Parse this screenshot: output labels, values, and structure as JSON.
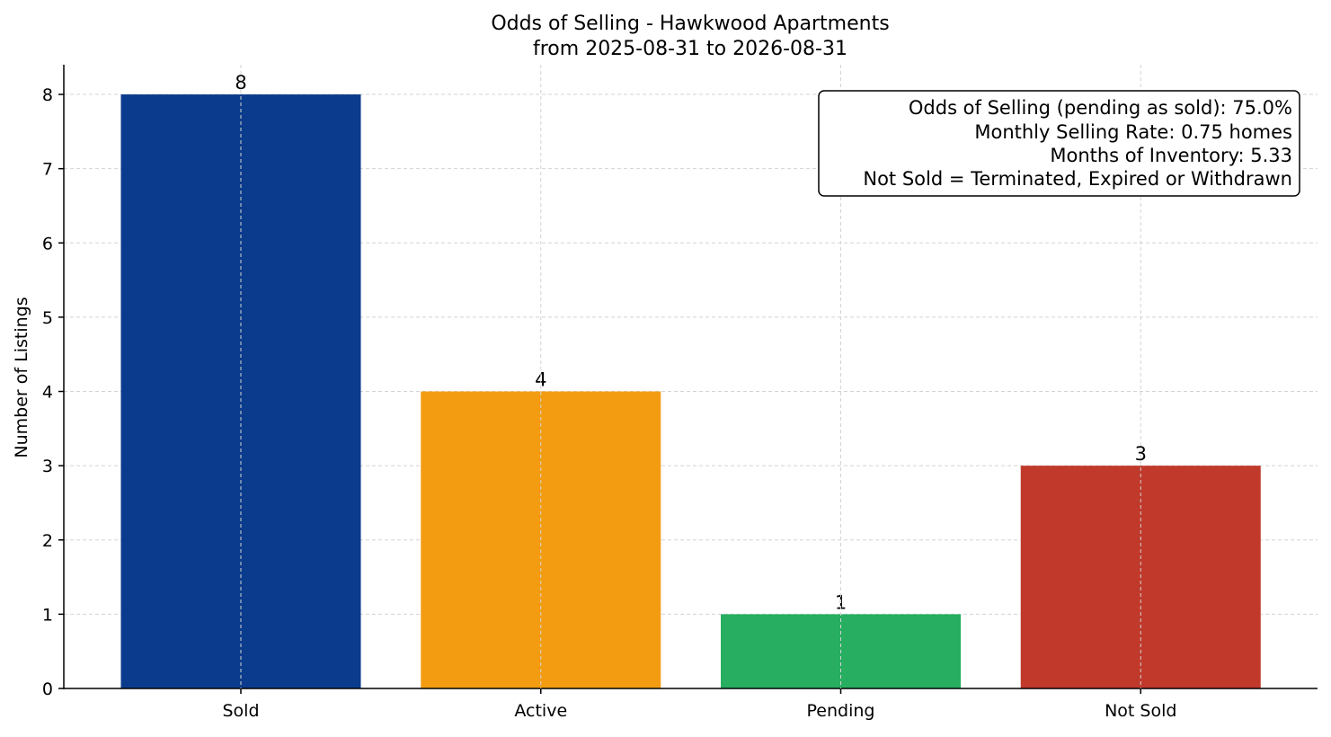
{
  "chart_data": {
    "type": "bar",
    "title": "Odds of Selling - Hawkwood Apartments",
    "subtitle": "from 2025-08-31 to 2026-08-31",
    "xlabel": "",
    "ylabel": "Number of Listings",
    "categories": [
      "Sold",
      "Active",
      "Pending",
      "Not Sold"
    ],
    "values": [
      8,
      4,
      1,
      3
    ],
    "colors": [
      "#0b3b8c",
      "#f39c12",
      "#27ae60",
      "#c0392b"
    ],
    "ylim": [
      0,
      8.4
    ],
    "yticks": [
      0,
      1,
      2,
      3,
      4,
      5,
      6,
      7,
      8
    ],
    "grid": true,
    "annotation": {
      "placement": "top-right",
      "lines": [
        "Odds of Selling (pending as sold): 75.0%",
        "Monthly Selling Rate: 0.75 homes",
        "Months of Inventory: 5.33",
        "Not Sold = Terminated, Expired or Withdrawn"
      ]
    }
  }
}
